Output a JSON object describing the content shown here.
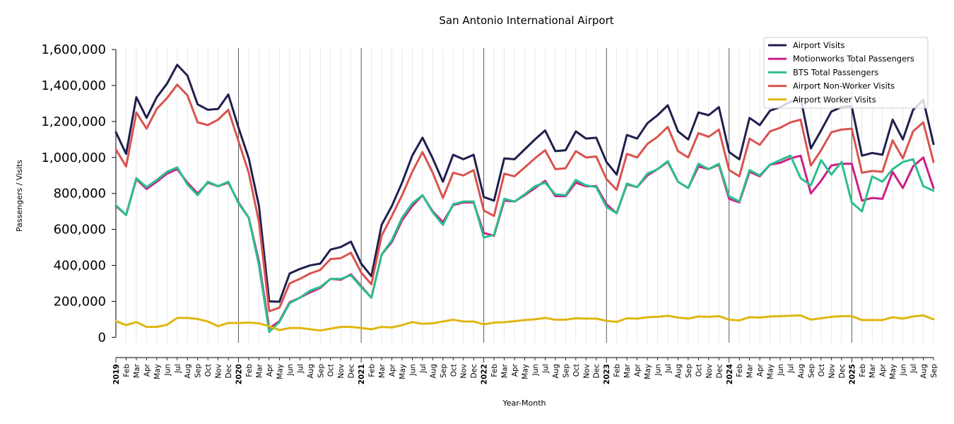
{
  "chart_data": {
    "type": "line",
    "title": "San Antonio International Airport",
    "xlabel": "Year-Month",
    "ylabel": "Passengers / Visits",
    "ylim": [
      -30000,
      1620000
    ],
    "yticks": [
      0,
      200000,
      400000,
      600000,
      800000,
      1000000,
      1200000,
      1400000,
      1600000
    ],
    "ytick_labels": [
      "0",
      "200,000",
      "400,000",
      "600,000",
      "800,000",
      "1,000,000",
      "1,200,000",
      "1,400,000",
      "1,600,000"
    ],
    "legend_position": "top-right",
    "x": [
      "2019",
      "Feb",
      "Mar",
      "Apr",
      "May",
      "Jun",
      "Jul",
      "Aug",
      "Sep",
      "Oct",
      "Nov",
      "Dec",
      "2020",
      "Feb",
      "Mar",
      "Apr",
      "May",
      "Jun",
      "Jul",
      "Aug",
      "Sep",
      "Oct",
      "Nov",
      "Dec",
      "2021",
      "Feb",
      "Mar",
      "Apr",
      "May",
      "Jun",
      "Jul",
      "Aug",
      "Sep",
      "Oct",
      "Nov",
      "Dec",
      "2022",
      "Feb",
      "Mar",
      "Apr",
      "May",
      "Jun",
      "Jul",
      "Aug",
      "Sep",
      "Oct",
      "Nov",
      "Dec",
      "2023",
      "Feb",
      "Mar",
      "Apr",
      "May",
      "Jun",
      "Jul",
      "Aug",
      "Sep",
      "Oct",
      "Nov",
      "Dec",
      "2024",
      "Feb",
      "Mar",
      "Apr",
      "May",
      "Jun",
      "Jul",
      "Aug",
      "Sep",
      "Oct",
      "Nov",
      "Dec",
      "2025",
      "Feb",
      "Mar",
      "Apr",
      "May",
      "Jun",
      "Jul",
      "Aug",
      "Sep"
    ],
    "series": [
      {
        "name": "Airport Visits",
        "color": "#1f1f4e",
        "values": [
          1140000,
          1020000,
          1335000,
          1220000,
          1335000,
          1410000,
          1515000,
          1455000,
          1295000,
          1265000,
          1270000,
          1350000,
          1165000,
          995000,
          730000,
          200000,
          198000,
          355000,
          380000,
          400000,
          410000,
          488000,
          502000,
          532000,
          410000,
          340000,
          625000,
          730000,
          860000,
          1010000,
          1110000,
          995000,
          865000,
          1015000,
          990000,
          1015000,
          780000,
          760000,
          995000,
          990000,
          1045000,
          1100000,
          1150000,
          1035000,
          1040000,
          1145000,
          1105000,
          1110000,
          975000,
          905000,
          1125000,
          1105000,
          1190000,
          1235000,
          1290000,
          1145000,
          1100000,
          1250000,
          1235000,
          1280000,
          1030000,
          990000,
          1220000,
          1180000,
          1260000,
          1280000,
          1310000,
          1330000,
          1050000,
          1150000,
          1255000,
          1280000,
          1285000,
          1010000,
          1025000,
          1015000,
          1210000,
          1100000,
          1265000,
          1320000,
          1075000
        ]
      },
      {
        "name": "Motionworks Total Passengers",
        "color": "#cc1f87",
        "values": [
          730000,
          680000,
          880000,
          825000,
          865000,
          910000,
          935000,
          860000,
          800000,
          860000,
          840000,
          860000,
          750000,
          665000,
          420000,
          50000,
          90000,
          195000,
          220000,
          250000,
          275000,
          325000,
          320000,
          350000,
          285000,
          220000,
          460000,
          530000,
          650000,
          730000,
          790000,
          700000,
          640000,
          735000,
          750000,
          750000,
          580000,
          565000,
          760000,
          755000,
          790000,
          830000,
          870000,
          785000,
          785000,
          860000,
          840000,
          840000,
          740000,
          690000,
          850000,
          835000,
          900000,
          935000,
          975000,
          865000,
          830000,
          950000,
          935000,
          960000,
          770000,
          750000,
          920000,
          895000,
          960000,
          970000,
          995000,
          1010000,
          800000,
          870000,
          955000,
          965000,
          965000,
          760000,
          775000,
          770000,
          920000,
          830000,
          950000,
          1000000,
          830000
        ]
      },
      {
        "name": "BTS Total Passengers",
        "color": "#2bbf8e",
        "values": [
          735000,
          680000,
          885000,
          835000,
          875000,
          920000,
          945000,
          850000,
          790000,
          865000,
          840000,
          865000,
          745000,
          665000,
          400000,
          30000,
          85000,
          190000,
          220000,
          260000,
          280000,
          325000,
          325000,
          345000,
          280000,
          220000,
          460000,
          540000,
          665000,
          745000,
          790000,
          695000,
          625000,
          740000,
          755000,
          755000,
          555000,
          570000,
          770000,
          755000,
          795000,
          840000,
          860000,
          795000,
          790000,
          875000,
          845000,
          835000,
          725000,
          690000,
          855000,
          835000,
          910000,
          935000,
          980000,
          865000,
          830000,
          965000,
          935000,
          965000,
          785000,
          755000,
          930000,
          900000,
          960000,
          985000,
          1010000,
          885000,
          845000,
          985000,
          905000,
          975000,
          750000,
          700000,
          895000,
          865000,
          935000,
          975000,
          990000,
          840000,
          815000
        ]
      },
      {
        "name": "Airport Non-Worker Visits",
        "color": "#d9534f",
        "values": [
          1045000,
          950000,
          1250000,
          1160000,
          1270000,
          1330000,
          1405000,
          1345000,
          1195000,
          1180000,
          1210000,
          1265000,
          1090000,
          915000,
          640000,
          145000,
          165000,
          300000,
          325000,
          355000,
          375000,
          435000,
          440000,
          470000,
          360000,
          295000,
          565000,
          675000,
          790000,
          920000,
          1030000,
          915000,
          775000,
          915000,
          900000,
          930000,
          705000,
          675000,
          910000,
          895000,
          945000,
          995000,
          1040000,
          935000,
          940000,
          1035000,
          1000000,
          1005000,
          880000,
          820000,
          1020000,
          1000000,
          1075000,
          1115000,
          1170000,
          1035000,
          1000000,
          1135000,
          1115000,
          1155000,
          930000,
          895000,
          1105000,
          1070000,
          1145000,
          1165000,
          1195000,
          1210000,
          955000,
          1040000,
          1140000,
          1155000,
          1160000,
          915000,
          925000,
          920000,
          1095000,
          995000,
          1145000,
          1195000,
          975000
        ]
      },
      {
        "name": "Airport Worker Visits",
        "color": "#e0b610",
        "values": [
          90000,
          68000,
          85000,
          58000,
          58000,
          70000,
          108000,
          108000,
          102000,
          88000,
          62000,
          80000,
          80000,
          82000,
          78000,
          62000,
          40000,
          52000,
          52000,
          45000,
          38000,
          48000,
          58000,
          58000,
          52000,
          45000,
          58000,
          55000,
          68000,
          85000,
          75000,
          78000,
          88000,
          98000,
          88000,
          88000,
          72000,
          82000,
          84000,
          90000,
          96000,
          100000,
          108000,
          98000,
          98000,
          106000,
          104000,
          104000,
          92000,
          86000,
          106000,
          104000,
          112000,
          114000,
          120000,
          110000,
          104000,
          116000,
          114000,
          118000,
          98000,
          94000,
          112000,
          110000,
          116000,
          118000,
          120000,
          122000,
          98000,
          106000,
          114000,
          118000,
          118000,
          96000,
          96000,
          96000,
          112000,
          104000,
          116000,
          122000,
          100000
        ]
      }
    ]
  }
}
